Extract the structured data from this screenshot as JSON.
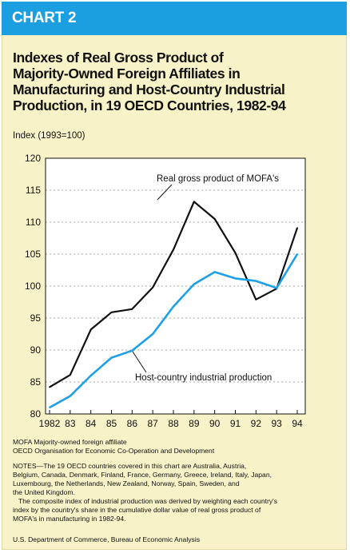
{
  "header": {
    "chart_label": "CHART 2"
  },
  "title_lines": [
    "Indexes of Real Gross Product of",
    "Majority-Owned Foreign Affiliates in",
    "Manufacturing and Host-Country Industrial",
    "Production, in 19 OECD Countries, 1982-94"
  ],
  "colors": {
    "header_bar": "#1c9fe0",
    "panel_bg": "#f7f2c8",
    "series_mofa": "#111111",
    "series_production": "#1ea0e6"
  },
  "chart_data": {
    "type": "line",
    "title": "Indexes of Real Gross Product of Majority-Owned Foreign Affiliates in Manufacturing and Host-Country Industrial Production, in 19 OECD Countries, 1982-94",
    "ylabel": "Index (1993=100)",
    "xlabel": "",
    "ylim": [
      80,
      120
    ],
    "yticks": [
      80,
      85,
      90,
      95,
      100,
      105,
      110,
      115,
      120
    ],
    "categories": [
      "1982",
      "83",
      "84",
      "85",
      "86",
      "87",
      "88",
      "89",
      "90",
      "91",
      "92",
      "93",
      "94"
    ],
    "grid": "horizontal dashed",
    "series": [
      {
        "name": "Real gross product of MOFA's",
        "color": "#111111",
        "values": [
          84.2,
          86.1,
          93.2,
          95.9,
          96.4,
          99.8,
          105.7,
          113.2,
          110.5,
          105.2,
          97.9,
          99.6,
          109.1
        ]
      },
      {
        "name": "Host-country industrial production",
        "color": "#1ea0e6",
        "values": [
          81.0,
          82.8,
          86.0,
          88.8,
          89.9,
          92.5,
          96.8,
          100.3,
          102.2,
          101.2,
          100.8,
          99.7,
          105.0
        ]
      }
    ]
  },
  "notes": {
    "abbrev_lines": [
      "MOFA Majority-owned foreign affiliate",
      "OECD Organisation for Economic Co-Operation and Development"
    ],
    "notes_lines": [
      "NOTES—The 19 OECD countries covered in this chart are Australia, Austria,",
      "Belgium, Canada, Denmark, Finland, France, Germany, Greece, Ireland, Italy, Japan,",
      "Luxembourg, the Netherlands, New Zealand, Norway, Spain, Sweden, and",
      "the United Kingdom.",
      "   The composite index of industrial production was derived by weighting each country's",
      "index by the country's share in the cumulative dollar value of real gross product of",
      "MOFA's in manufacturing in 1982-94."
    ],
    "source": "U.S. Department of Commerce, Bureau of Economic Analysis"
  }
}
